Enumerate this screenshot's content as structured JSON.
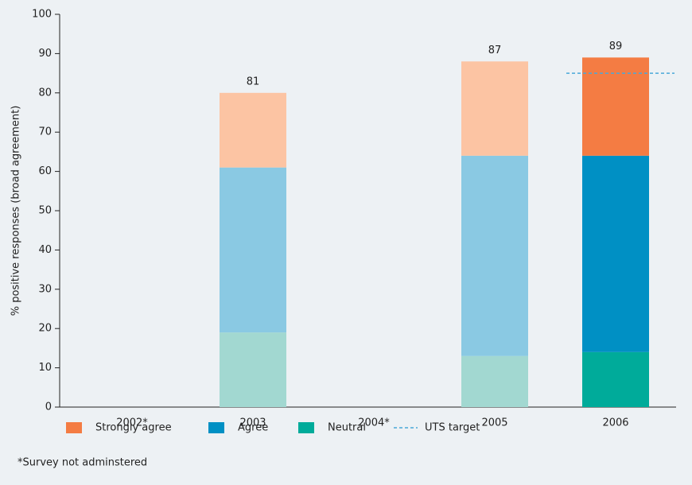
{
  "chart_data": {
    "type": "stacked_bar",
    "ylabel": "% positive responses (broad agreement)",
    "categories": [
      "2002*",
      "2003",
      "2004*",
      "2005",
      "2006"
    ],
    "series": [
      {
        "name": "Neutral",
        "color": "#00ab9a",
        "colors": [
          "#a2d8d1",
          "#a2d8d1",
          "#a2d8d1",
          "#a2d8d1",
          "#00ab9a"
        ],
        "values": [
          null,
          19,
          null,
          13,
          14
        ]
      },
      {
        "name": "Agree",
        "color": "#0090c4",
        "colors": [
          "#8ac9e3",
          "#8ac9e3",
          "#8ac9e3",
          "#8ac9e3",
          "#0090c4"
        ],
        "values": [
          null,
          42,
          null,
          51,
          50
        ]
      },
      {
        "name": "Strongly agree",
        "color": "#f47c43",
        "colors": [
          "#fcc4a3",
          "#fcc4a3",
          "#fcc4a3",
          "#fcc4a3",
          "#f47c43"
        ],
        "values": [
          null,
          19,
          null,
          24,
          25
        ]
      }
    ],
    "totals": [
      null,
      81,
      null,
      87,
      89
    ],
    "target": {
      "name": "UTS target",
      "value": 85,
      "color": "#4aa8d8"
    },
    "ylim": [
      0,
      100
    ],
    "yticks": [
      0,
      10,
      20,
      30,
      40,
      50,
      60,
      70,
      80,
      90,
      100
    ],
    "footnote": "*Survey not adminstered"
  }
}
